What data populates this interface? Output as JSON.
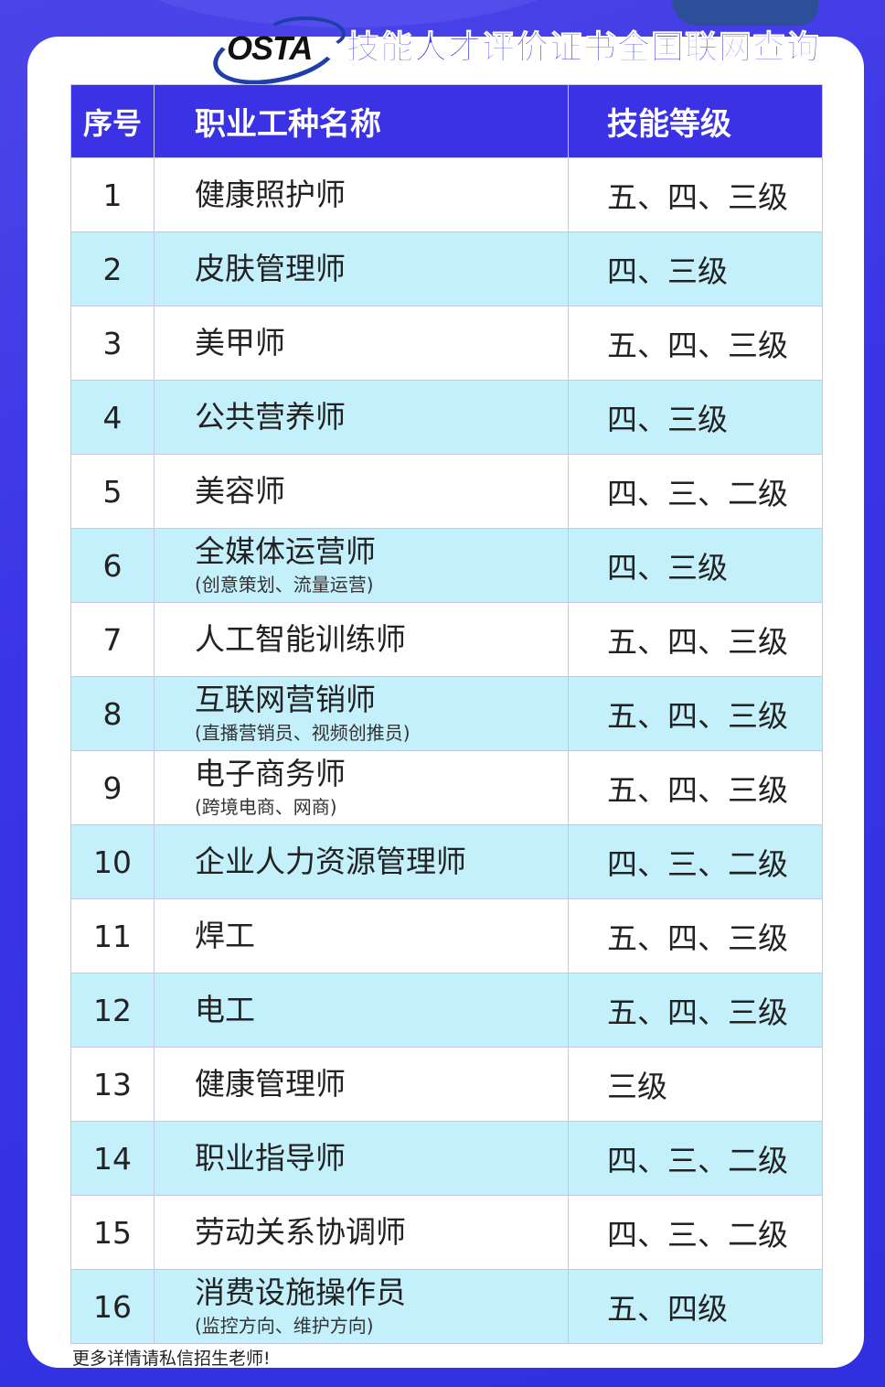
{
  "header": {
    "logo_text": "OSTA",
    "title": "技能人才评价证书全国联网查询"
  },
  "table": {
    "columns": [
      "序号",
      "职业工种名称",
      "技能等级"
    ],
    "rows": [
      {
        "no": "1",
        "name": "健康照护师",
        "sub": "",
        "level": "五、四、三级"
      },
      {
        "no": "2",
        "name": "皮肤管理师",
        "sub": "",
        "level": "四、三级"
      },
      {
        "no": "3",
        "name": "美甲师",
        "sub": "",
        "level": "五、四、三级"
      },
      {
        "no": "4",
        "name": "公共营养师",
        "sub": "",
        "level": "四、三级"
      },
      {
        "no": "5",
        "name": "美容师",
        "sub": "",
        "level": "四、三、二级"
      },
      {
        "no": "6",
        "name": "全媒体运营师",
        "sub": "(创意策划、流量运营)",
        "level": "四、三级"
      },
      {
        "no": "7",
        "name": "人工智能训练师",
        "sub": "",
        "level": "五、四、三级"
      },
      {
        "no": "8",
        "name": "互联网营销师",
        "sub": "(直播营销员、视频创推员)",
        "level": "五、四、三级"
      },
      {
        "no": "9",
        "name": "电子商务师",
        "sub": "(跨境电商、网商)",
        "level": "五、四、三级"
      },
      {
        "no": "10",
        "name": "企业人力资源管理师",
        "sub": "",
        "level": "四、三、二级"
      },
      {
        "no": "11",
        "name": "焊工",
        "sub": "",
        "level": "五、四、三级"
      },
      {
        "no": "12",
        "name": "电工",
        "sub": "",
        "level": "五、四、三级"
      },
      {
        "no": "13",
        "name": "健康管理师",
        "sub": "",
        "level": "三级"
      },
      {
        "no": "14",
        "name": "职业指导师",
        "sub": "",
        "level": "四、三、二级"
      },
      {
        "no": "15",
        "name": "劳动关系协调师",
        "sub": "",
        "level": "四、三、二级"
      },
      {
        "no": "16",
        "name": "消费设施操作员",
        "sub": "(监控方向、维护方向)",
        "level": "五、四级"
      }
    ]
  },
  "footer": {
    "note": "更多详情请私信招生老师!"
  },
  "colors": {
    "background": "#3a35e6",
    "header_bg": "#3a32e4",
    "stripe": "#c4f0fb",
    "title": "#3c35d8"
  }
}
